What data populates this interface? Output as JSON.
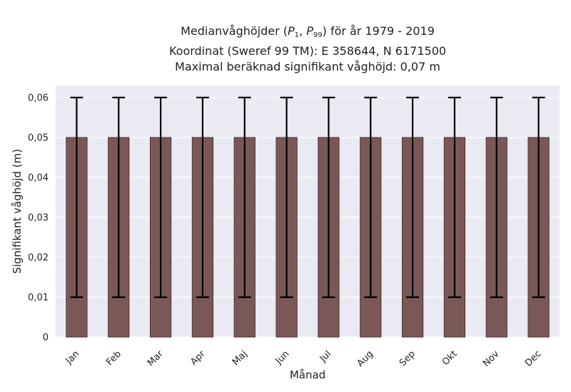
{
  "chart_data": {
    "type": "bar",
    "title_lines": [
      "Medianvåghöjder",
      "för år 1979 - 2019",
      "Koordinat (Sweref 99 TM): E 358644, N 6171500",
      "Maximal beräknad signifikant våghöjd: 0,07 m"
    ],
    "title_math": {
      "p_low_base": "P",
      "p_low_sub": "1",
      "p_high_base": "P",
      "p_high_sub": "99"
    },
    "xlabel": "Månad",
    "ylabel": "Signifikant våghöjd (m)",
    "categories": [
      "Jan",
      "Feb",
      "Mar",
      "Apr",
      "Maj",
      "Jun",
      "Jul",
      "Aug",
      "Sep",
      "Okt",
      "Nov",
      "Dec"
    ],
    "values": [
      0.05,
      0.05,
      0.05,
      0.05,
      0.05,
      0.05,
      0.05,
      0.05,
      0.05,
      0.05,
      0.05,
      0.05
    ],
    "error_low": [
      0.01,
      0.01,
      0.01,
      0.01,
      0.01,
      0.01,
      0.01,
      0.01,
      0.01,
      0.01,
      0.01,
      0.01
    ],
    "error_high": [
      0.06,
      0.06,
      0.06,
      0.06,
      0.06,
      0.06,
      0.06,
      0.06,
      0.06,
      0.06,
      0.06,
      0.06
    ],
    "ylim": [
      0,
      0.063
    ],
    "yticks": [
      0,
      0.01,
      0.02,
      0.03,
      0.04,
      0.05,
      0.06
    ],
    "ytick_labels": [
      "0",
      "0,01",
      "0,02",
      "0,03",
      "0,04",
      "0,05",
      "0,06"
    ],
    "grid": true,
    "colors": {
      "bar": "#7a5858",
      "bar_edge": "#3d2b2b",
      "error": "#000000",
      "background": "#eaeaf2",
      "grid": "#ffffff"
    }
  }
}
